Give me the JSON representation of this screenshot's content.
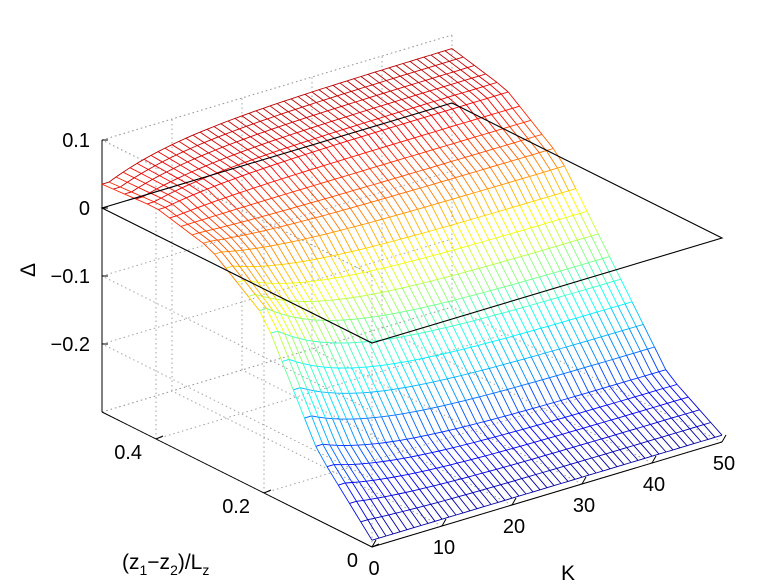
{
  "chart_data": {
    "type": "surface",
    "title": "",
    "zlabel": "Δ",
    "xlabel": "K",
    "ylabel": {
      "prefix": "(z",
      "sub1": "1",
      "mid": "−z",
      "sub2": "2",
      "post": ")/L",
      "sub3": "z"
    },
    "x_range": [
      0,
      50
    ],
    "y_range": [
      0,
      0.5
    ],
    "z_range": [
      -0.3,
      0.1
    ],
    "x_ticks": [
      "0",
      "10",
      "20",
      "30",
      "40",
      "50"
    ],
    "y_ticks": [
      "0",
      "0.2",
      "0.4"
    ],
    "z_ticks": [
      "0.1",
      "0",
      "−0.1",
      "−0.2"
    ],
    "grid": true,
    "colormap": "jet",
    "reference_plane": {
      "z": 0,
      "color": "#000000"
    },
    "surface_samples": {
      "K": [
        1,
        10,
        20,
        30,
        40,
        50
      ],
      "z_sep": [
        0,
        0.1,
        0.2,
        0.3,
        0.4,
        0.5
      ],
      "delta_at_K50": [
        -0.29,
        -0.24,
        -0.12,
        0.0,
        0.06,
        0.08
      ],
      "delta_at_K1": [
        -0.29,
        -0.2,
        -0.04,
        0.02,
        0.04,
        0.035
      ]
    }
  }
}
